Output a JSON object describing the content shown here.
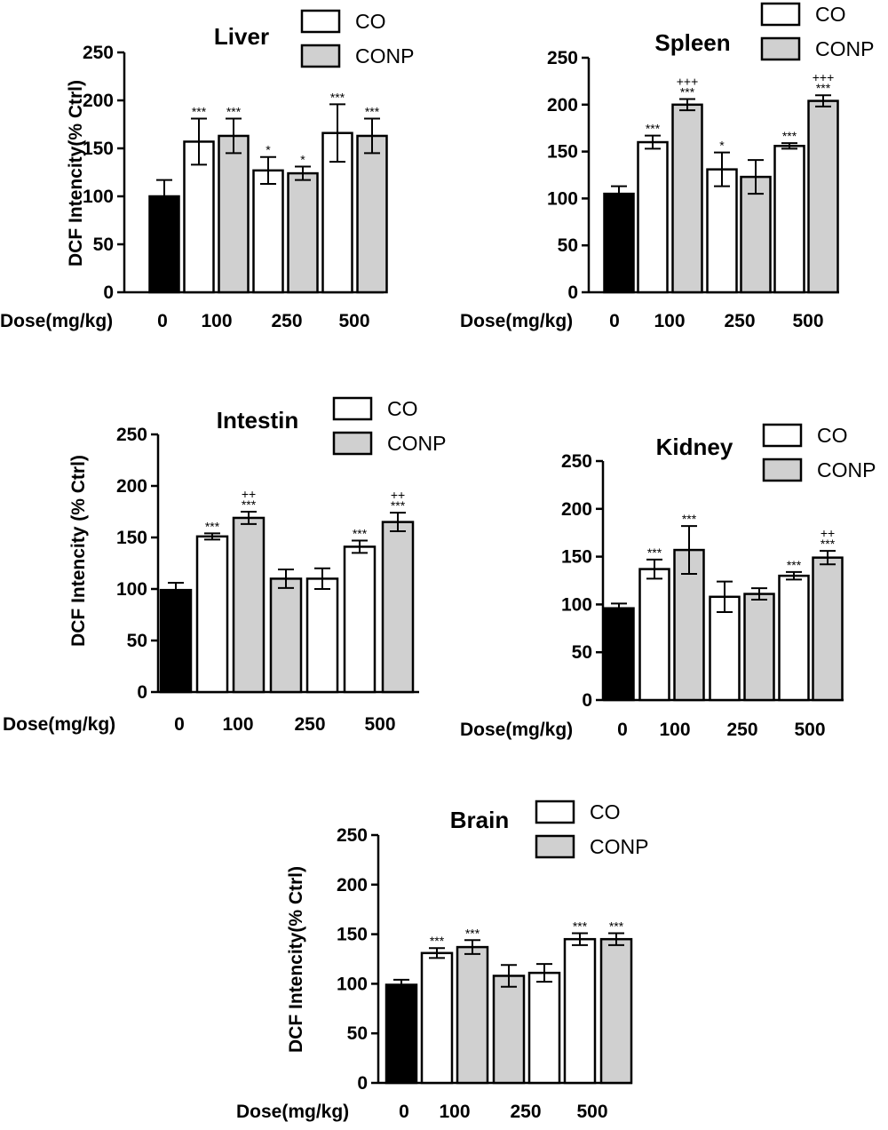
{
  "colors": {
    "control": "#000000",
    "co": "#ffffff",
    "conp": "#d0d0d0",
    "stroke": "#000000"
  },
  "legend": [
    "CO",
    "CONP"
  ],
  "dose_label": "Dose(mg/kg)",
  "dose_ticks": [
    "0",
    "100",
    "250",
    "500"
  ],
  "chart_data": [
    {
      "type": "bar",
      "title": "Liver",
      "ylabel": "DCF Intencity(% Ctrl)",
      "ylim": [
        0,
        250
      ],
      "yticks": [
        0,
        50,
        100,
        150,
        200,
        250
      ],
      "bars": [
        {
          "group": "0",
          "series": "Control",
          "value": 100,
          "error": 17,
          "sig": ""
        },
        {
          "group": "100",
          "series": "CO",
          "value": 157,
          "error": 24,
          "sig": "***"
        },
        {
          "group": "100",
          "series": "CONP",
          "value": 163,
          "error": 18,
          "sig": "***"
        },
        {
          "group": "250",
          "series": "CO",
          "value": 127,
          "error": 14,
          "sig": "*"
        },
        {
          "group": "250",
          "series": "CONP",
          "value": 124,
          "error": 7,
          "sig": "*"
        },
        {
          "group": "500",
          "series": "CO",
          "value": 166,
          "error": 30,
          "sig": "***"
        },
        {
          "group": "500",
          "series": "CONP",
          "value": 163,
          "error": 18,
          "sig": "***"
        }
      ]
    },
    {
      "type": "bar",
      "title": "Spleen",
      "ylabel": "",
      "ylim": [
        0,
        250
      ],
      "yticks": [
        0,
        50,
        100,
        150,
        200,
        250
      ],
      "bars": [
        {
          "group": "0",
          "series": "Control",
          "value": 105,
          "error": 8,
          "sig": ""
        },
        {
          "group": "100",
          "series": "CO",
          "value": 160,
          "error": 7,
          "sig": "***"
        },
        {
          "group": "100",
          "series": "CONP",
          "value": 200,
          "error": 6,
          "sig": "***",
          "sig2": "+++"
        },
        {
          "group": "250",
          "series": "CO",
          "value": 131,
          "error": 18,
          "sig": "*"
        },
        {
          "group": "250",
          "series": "CONP",
          "value": 123,
          "error": 18,
          "sig": ""
        },
        {
          "group": "500",
          "series": "CO",
          "value": 156,
          "error": 3,
          "sig": "***"
        },
        {
          "group": "500",
          "series": "CONP",
          "value": 204,
          "error": 6,
          "sig": "***",
          "sig2": "+++"
        }
      ]
    },
    {
      "type": "bar",
      "title": "Intestin",
      "ylabel": "DCF Intencity (% Ctrl)",
      "ylim": [
        0,
        250
      ],
      "yticks": [
        0,
        50,
        100,
        150,
        200,
        250
      ],
      "bars": [
        {
          "group": "0",
          "series": "Control",
          "value": 99,
          "error": 7,
          "sig": ""
        },
        {
          "group": "100",
          "series": "CO",
          "value": 151,
          "error": 3,
          "sig": "***"
        },
        {
          "group": "100",
          "series": "CONP",
          "value": 169,
          "error": 6,
          "sig": "***",
          "sig2": "++"
        },
        {
          "group": "250",
          "series": "CONP",
          "value": 110,
          "error": 9,
          "sig": ""
        },
        {
          "group": "250",
          "series": "CO",
          "value": 110,
          "error": 10,
          "sig": ""
        },
        {
          "group": "500",
          "series": "CO",
          "value": 141,
          "error": 6,
          "sig": "***"
        },
        {
          "group": "500",
          "series": "CONP",
          "value": 165,
          "error": 9,
          "sig": "***",
          "sig2": "++"
        }
      ]
    },
    {
      "type": "bar",
      "title": "Kidney",
      "ylabel": "",
      "ylim": [
        0,
        250
      ],
      "yticks": [
        0,
        50,
        100,
        150,
        200,
        250
      ],
      "bars": [
        {
          "group": "0",
          "series": "Control",
          "value": 96,
          "error": 5,
          "sig": ""
        },
        {
          "group": "100",
          "series": "CO",
          "value": 137,
          "error": 10,
          "sig": "***"
        },
        {
          "group": "100",
          "series": "CONP",
          "value": 157,
          "error": 25,
          "sig": "***"
        },
        {
          "group": "250",
          "series": "CO",
          "value": 108,
          "error": 16,
          "sig": ""
        },
        {
          "group": "250",
          "series": "CONP",
          "value": 111,
          "error": 6,
          "sig": ""
        },
        {
          "group": "500",
          "series": "CO",
          "value": 130,
          "error": 4,
          "sig": "***"
        },
        {
          "group": "500",
          "series": "CONP",
          "value": 149,
          "error": 7,
          "sig": "***",
          "sig2": "++"
        }
      ]
    },
    {
      "type": "bar",
      "title": "Brain",
      "ylabel": "DCF Intencity(% Ctrl)",
      "ylim": [
        0,
        250
      ],
      "yticks": [
        0,
        50,
        100,
        150,
        200,
        250
      ],
      "bars": [
        {
          "group": "0",
          "series": "Control",
          "value": 99,
          "error": 5,
          "sig": ""
        },
        {
          "group": "100",
          "series": "CO",
          "value": 131,
          "error": 5,
          "sig": "***"
        },
        {
          "group": "100",
          "series": "CONP",
          "value": 137,
          "error": 7,
          "sig": "***"
        },
        {
          "group": "250",
          "series": "CONP",
          "value": 108,
          "error": 11,
          "sig": ""
        },
        {
          "group": "250",
          "series": "CO",
          "value": 111,
          "error": 9,
          "sig": ""
        },
        {
          "group": "500",
          "series": "CO",
          "value": 145,
          "error": 6,
          "sig": "***"
        },
        {
          "group": "500",
          "series": "CONP",
          "value": 145,
          "error": 6,
          "sig": "***"
        }
      ]
    }
  ]
}
